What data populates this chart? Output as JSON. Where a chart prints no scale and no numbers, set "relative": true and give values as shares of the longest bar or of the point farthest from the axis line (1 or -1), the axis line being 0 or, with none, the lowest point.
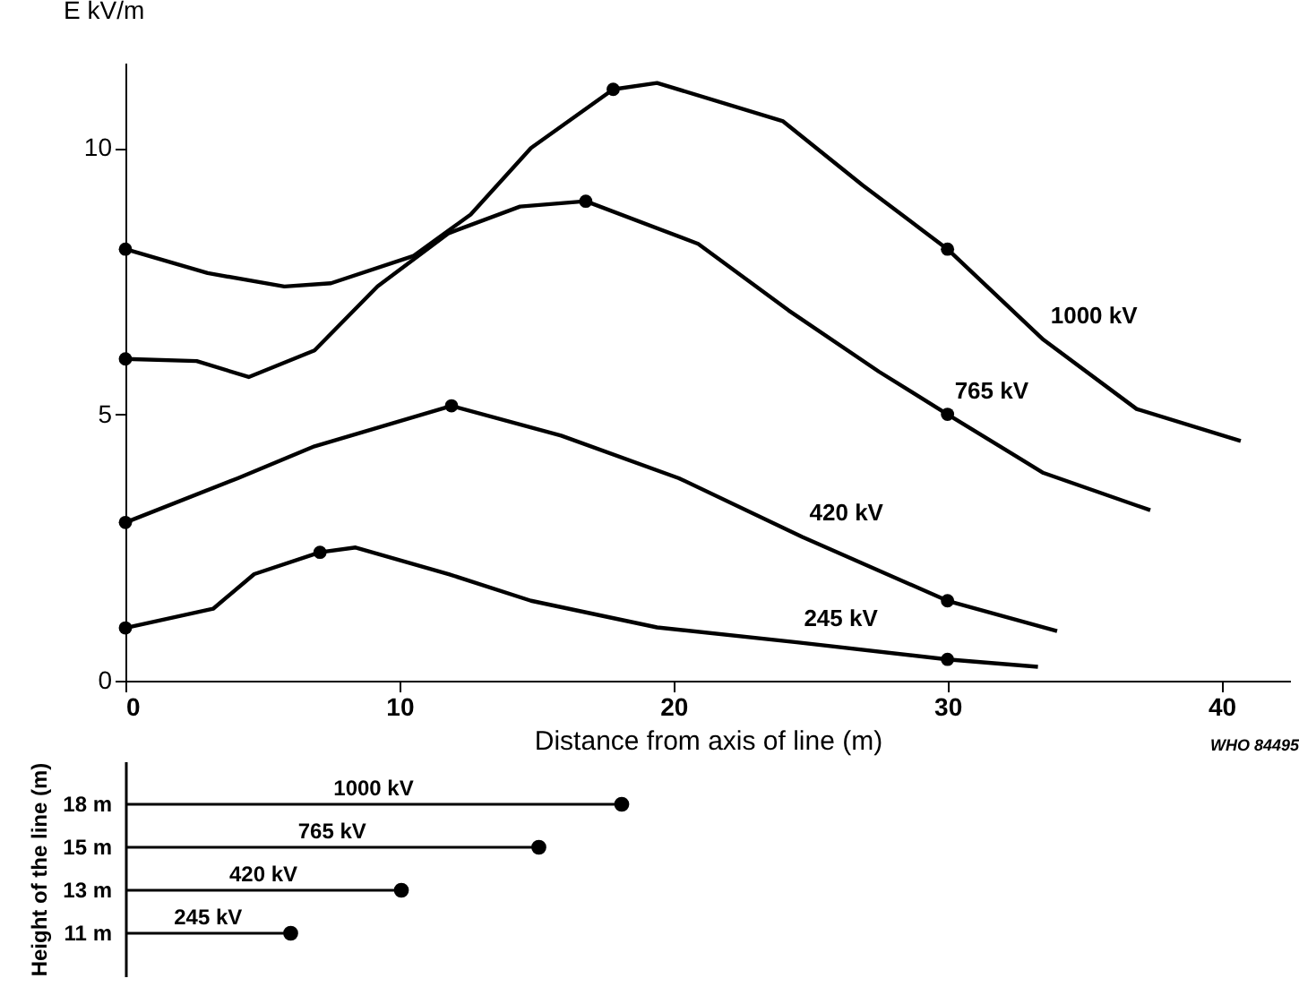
{
  "chart_data": [
    {
      "type": "line",
      "ylabel": "E kV/m",
      "xlabel": "Distance from axis of line (m)",
      "xlim": [
        0,
        42.5
      ],
      "ylim": [
        0,
        11.6
      ],
      "xticks": [
        0,
        10,
        20,
        30,
        40
      ],
      "yticks": [
        0,
        5,
        10
      ],
      "grid": false,
      "marker": "none",
      "line_style": "solid",
      "annotations": [
        "WHO 84495"
      ],
      "series": [
        {
          "name": "1000 kV",
          "color": "#000000",
          "x": [
            0,
            3,
            5.8,
            7.5,
            10.5,
            12.6,
            14.8,
            17.8,
            19.4,
            24,
            26.9,
            30,
            33.5,
            36.9,
            40.7
          ],
          "values": [
            8.1,
            7.65,
            7.4,
            7.46,
            7.97,
            8.75,
            10.0,
            11.1,
            11.22,
            10.5,
            9.3,
            8.1,
            6.4,
            5.1,
            4.5
          ]
        },
        {
          "name": "765 kV",
          "color": "#000000",
          "x": [
            0,
            2.6,
            4.5,
            6.9,
            9.2,
            11.8,
            14.4,
            16.8,
            20.9,
            24.2,
            27.5,
            30,
            33.5,
            37.4
          ],
          "values": [
            6.04,
            6.0,
            5.7,
            6.2,
            7.4,
            8.4,
            8.9,
            9.0,
            8.2,
            6.95,
            5.8,
            5.0,
            3.9,
            3.2
          ]
        },
        {
          "name": "420 kV",
          "color": "#000000",
          "x": [
            0,
            4.1,
            6.9,
            11.9,
            15.9,
            20.2,
            24.7,
            30,
            34
          ],
          "values": [
            2.97,
            3.8,
            4.4,
            5.16,
            4.6,
            3.8,
            2.7,
            1.5,
            0.93
          ]
        },
        {
          "name": "245 kV",
          "color": "#000000",
          "x": [
            0,
            3.2,
            4.7,
            7.1,
            8.4,
            11.8,
            14.8,
            19.4,
            24.5,
            30,
            33.3
          ],
          "values": [
            0.99,
            1.35,
            2.0,
            2.41,
            2.5,
            2.0,
            1.5,
            1.0,
            0.72,
            0.4,
            0.26
          ]
        },
        {
          "type": "scatter",
          "color": "#000000",
          "marker": "circle",
          "x": [
            0,
            17.8,
            30,
            0,
            16.8,
            30,
            0,
            11.9,
            30,
            0,
            7.1,
            30
          ],
          "values": [
            8.1,
            11.1,
            8.1,
            6.04,
            9.0,
            5.0,
            2.97,
            5.16,
            1.5,
            0.99,
            2.41,
            0.4
          ]
        }
      ]
    },
    {
      "type": "lollipop",
      "orientation": "horizontal",
      "ylabel": "Height of the line (m)",
      "categories": [
        "18 m",
        "15 m",
        "13 m",
        "11 m"
      ],
      "values": [
        1,
        0.833,
        0.556,
        0.333
      ],
      "relative": true,
      "color": "#000000",
      "tick_labels": "y",
      "marker": "circle",
      "annotations": [
        "1000 kV",
        "765 kV",
        "420 kV",
        "245 kV"
      ]
    }
  ]
}
